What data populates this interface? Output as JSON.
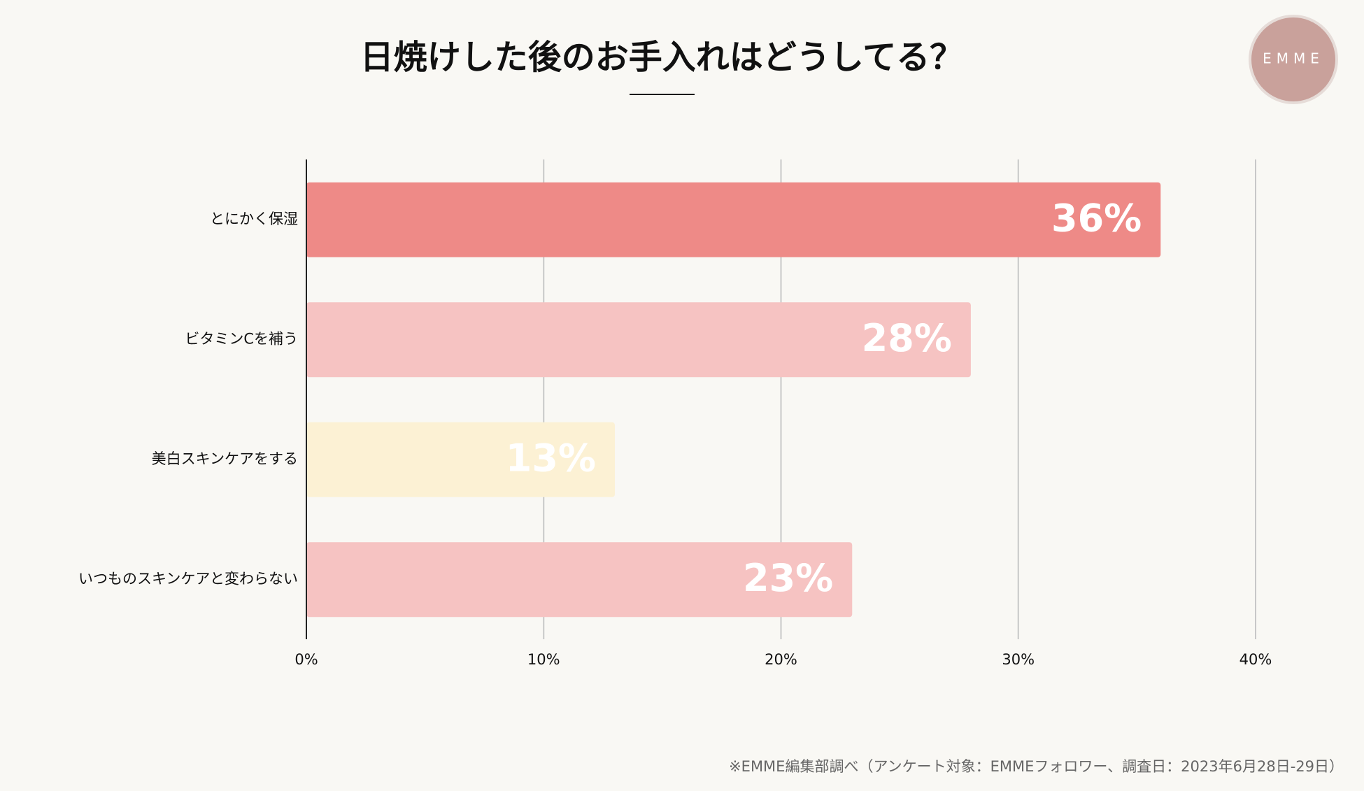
{
  "chart_data": {
    "type": "bar",
    "orientation": "horizontal",
    "title": "日焼けした後のお手入れはどうしてる？",
    "categories": [
      "とにかく保湿",
      "ビタミンCを補う",
      "美白スキンケアをする",
      "いつものスキンケアと変わらない"
    ],
    "values": [
      36,
      28,
      13,
      23
    ],
    "value_labels": [
      "36%",
      "28%",
      "13%",
      "23%"
    ],
    "colors": [
      "#ee8a87",
      "#f6c3c2",
      "#fcf1d4",
      "#f6c3c2"
    ],
    "xlim": [
      0,
      40
    ],
    "xticks": [
      {
        "value": 0,
        "label": "0%"
      },
      {
        "value": 10,
        "label": "10%"
      },
      {
        "value": 20,
        "label": "20%"
      },
      {
        "value": 30,
        "label": "30%"
      },
      {
        "value": 40,
        "label": "40%"
      }
    ],
    "grid": true
  },
  "logo": "EMME",
  "footnote": "※EMME編集部調べ（アンケート対象：EMMEフォロワー、調査日：2023年6月28日-29日）"
}
